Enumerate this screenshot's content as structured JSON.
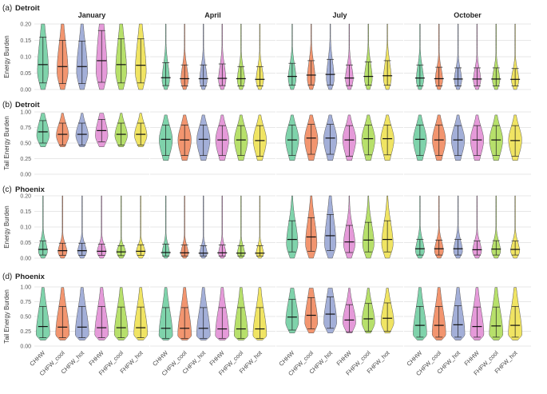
{
  "chart_data": {
    "type": "violin",
    "models": [
      "CHHW",
      "CHFW_cool",
      "CHFW_hot",
      "FHHW",
      "FHFW_cool",
      "FHFW_hot"
    ],
    "model_colors": [
      "#7fd3ab",
      "#f2956f",
      "#a3afd8",
      "#e59ad9",
      "#b7e06b",
      "#f0e463"
    ],
    "months": [
      "January",
      "April",
      "July",
      "October"
    ],
    "rows": [
      {
        "panel_label": "(a)",
        "city": "Detroit",
        "ylabel": "Energy Burden",
        "ylim": [
          0,
          0.2
        ],
        "yticks": [
          "0.00",
          "0.05",
          "0.10",
          "0.15",
          "0.20"
        ],
        "months": [
          {
            "median": [
              0.076,
              0.07,
              0.07,
              0.088,
              0.076,
              0.074
            ],
            "low": [
              0.02,
              0.018,
              0.018,
              0.022,
              0.02,
              0.02
            ],
            "high": [
              0.16,
              0.15,
              0.148,
              0.18,
              0.155,
              0.155
            ],
            "spread": 0.6,
            "top": 0.2,
            "mode": 0.055
          },
          {
            "median": [
              0.036,
              0.033,
              0.033,
              0.034,
              0.033,
              0.031
            ],
            "low": [
              0.012,
              0.011,
              0.011,
              0.012,
              0.011,
              0.011
            ],
            "high": [
              0.082,
              0.075,
              0.075,
              0.078,
              0.07,
              0.07
            ],
            "spread": 0.4,
            "top": 0.2,
            "mode": 0.028
          },
          {
            "median": [
              0.04,
              0.044,
              0.046,
              0.035,
              0.04,
              0.042
            ],
            "low": [
              0.013,
              0.014,
              0.014,
              0.012,
              0.013,
              0.013
            ],
            "high": [
              0.08,
              0.088,
              0.092,
              0.075,
              0.084,
              0.088
            ],
            "spread": 0.42,
            "top": 0.2,
            "mode": 0.032
          },
          {
            "median": [
              0.035,
              0.033,
              0.032,
              0.032,
              0.032,
              0.031
            ],
            "low": [
              0.011,
              0.011,
              0.011,
              0.011,
              0.011,
              0.011
            ],
            "high": [
              0.075,
              0.068,
              0.066,
              0.066,
              0.066,
              0.064
            ],
            "spread": 0.4,
            "top": 0.2,
            "mode": 0.028
          }
        ]
      },
      {
        "panel_label": "(b)",
        "city": "Detroit",
        "ylabel": "Tail Energy Burden",
        "ylim": [
          0,
          1.0
        ],
        "yticks": [
          "0.00",
          "0.25",
          "0.50",
          "0.75",
          "1.00"
        ],
        "months": [
          {
            "median": [
              0.68,
              0.64,
              0.64,
              0.7,
              0.64,
              0.64
            ],
            "low": [
              0.5,
              0.47,
              0.47,
              0.52,
              0.47,
              0.47
            ],
            "high": [
              0.86,
              0.82,
              0.82,
              0.88,
              0.82,
              0.82
            ],
            "spread": 0.68,
            "top": 0.98,
            "bottom": 0.44,
            "mode": 0.62
          },
          {
            "median": [
              0.56,
              0.55,
              0.56,
              0.55,
              0.55,
              0.54
            ],
            "low": [
              0.3,
              0.3,
              0.3,
              0.3,
              0.3,
              0.29
            ],
            "high": [
              0.79,
              0.79,
              0.79,
              0.78,
              0.78,
              0.78
            ],
            "spread": 0.72,
            "top": 0.95,
            "bottom": 0.22,
            "mode": 0.55
          },
          {
            "median": [
              0.55,
              0.58,
              0.58,
              0.55,
              0.57,
              0.57
            ],
            "low": [
              0.3,
              0.32,
              0.32,
              0.29,
              0.31,
              0.31
            ],
            "high": [
              0.79,
              0.8,
              0.8,
              0.78,
              0.79,
              0.79
            ],
            "spread": 0.72,
            "top": 0.95,
            "bottom": 0.22,
            "mode": 0.56
          },
          {
            "median": [
              0.56,
              0.55,
              0.55,
              0.55,
              0.55,
              0.54
            ],
            "low": [
              0.3,
              0.3,
              0.3,
              0.3,
              0.3,
              0.29
            ],
            "high": [
              0.79,
              0.79,
              0.78,
              0.78,
              0.78,
              0.78
            ],
            "spread": 0.72,
            "top": 0.95,
            "bottom": 0.22,
            "mode": 0.55
          }
        ]
      },
      {
        "panel_label": "(c)",
        "city": "Phoenix",
        "ylabel": "Energy Burden",
        "ylim": [
          0,
          0.2
        ],
        "yticks": [
          "0.00",
          "0.05",
          "0.10",
          "0.15",
          "0.20"
        ],
        "months": [
          {
            "median": [
              0.028,
              0.024,
              0.024,
              0.022,
              0.02,
              0.022
            ],
            "low": [
              0.01,
              0.009,
              0.009,
              0.009,
              0.008,
              0.009
            ],
            "high": [
              0.055,
              0.048,
              0.048,
              0.045,
              0.04,
              0.043
            ],
            "spread": 0.48,
            "top": 0.2,
            "mode": 0.02
          },
          {
            "median": [
              0.018,
              0.017,
              0.016,
              0.017,
              0.016,
              0.016
            ],
            "low": [
              0.007,
              0.007,
              0.007,
              0.007,
              0.007,
              0.007
            ],
            "high": [
              0.045,
              0.042,
              0.04,
              0.042,
              0.04,
              0.04
            ],
            "spread": 0.4,
            "top": 0.2,
            "mode": 0.014
          },
          {
            "median": [
              0.06,
              0.068,
              0.072,
              0.052,
              0.058,
              0.06
            ],
            "low": [
              0.02,
              0.022,
              0.024,
              0.018,
              0.02,
              0.02
            ],
            "high": [
              0.12,
              0.13,
              0.14,
              0.105,
              0.115,
              0.12
            ],
            "spread": 0.62,
            "top": 0.2,
            "mode": 0.045
          },
          {
            "median": [
              0.03,
              0.03,
              0.03,
              0.027,
              0.029,
              0.028
            ],
            "low": [
              0.01,
              0.01,
              0.01,
              0.01,
              0.01,
              0.01
            ],
            "high": [
              0.06,
              0.058,
              0.06,
              0.055,
              0.056,
              0.055
            ],
            "spread": 0.48,
            "top": 0.2,
            "mode": 0.022
          }
        ]
      },
      {
        "panel_label": "(d)",
        "city": "Phoenix",
        "ylabel": "Tail Energy Burden",
        "ylim": [
          0,
          1.0
        ],
        "yticks": [
          "0.00",
          "0.25",
          "0.50",
          "0.75",
          "1.00"
        ],
        "months": [
          {
            "median": [
              0.33,
              0.32,
              0.32,
              0.31,
              0.31,
              0.31
            ],
            "low": [
              0.14,
              0.14,
              0.14,
              0.14,
              0.14,
              0.14
            ],
            "high": [
              0.67,
              0.67,
              0.67,
              0.67,
              0.66,
              0.66
            ],
            "spread": 0.74,
            "top": 0.99,
            "bottom": 0.1,
            "mode": 0.2
          },
          {
            "median": [
              0.3,
              0.3,
              0.3,
              0.29,
              0.29,
              0.29
            ],
            "low": [
              0.13,
              0.13,
              0.13,
              0.13,
              0.13,
              0.13
            ],
            "high": [
              0.65,
              0.65,
              0.65,
              0.65,
              0.65,
              0.65
            ],
            "spread": 0.74,
            "top": 0.99,
            "bottom": 0.1,
            "mode": 0.18
          },
          {
            "median": [
              0.49,
              0.52,
              0.54,
              0.44,
              0.46,
              0.47
            ],
            "low": [
              0.27,
              0.29,
              0.3,
              0.24,
              0.25,
              0.25
            ],
            "high": [
              0.79,
              0.82,
              0.83,
              0.7,
              0.72,
              0.73
            ],
            "spread": 0.7,
            "top": 0.98,
            "bottom": 0.22,
            "mode": 0.4
          },
          {
            "median": [
              0.35,
              0.35,
              0.36,
              0.33,
              0.34,
              0.35
            ],
            "low": [
              0.15,
              0.15,
              0.15,
              0.15,
              0.15,
              0.15
            ],
            "high": [
              0.67,
              0.67,
              0.68,
              0.66,
              0.66,
              0.67
            ],
            "spread": 0.74,
            "top": 0.99,
            "bottom": 0.1,
            "mode": 0.2
          }
        ]
      }
    ]
  }
}
